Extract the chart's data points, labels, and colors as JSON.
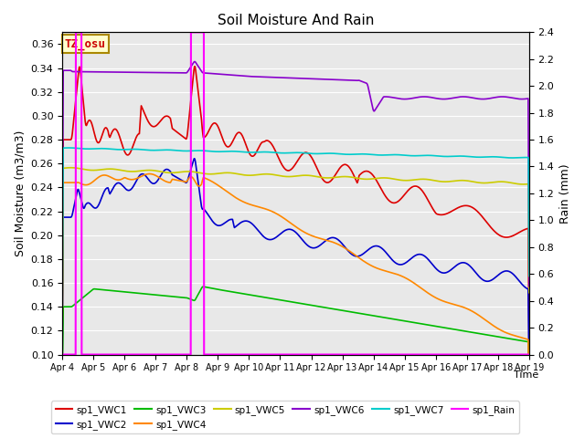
{
  "title": "Soil Moisture And Rain",
  "xlabel": "Time",
  "ylabel_left": "Soil Moisture (m3/m3)",
  "ylabel_right": "Rain (mm)",
  "annotation": "TZ_osu",
  "annotation_color": "#cc0000",
  "annotation_bg": "#ffffcc",
  "annotation_border": "#aa8800",
  "ylim_left": [
    0.1,
    0.37
  ],
  "ylim_right": [
    0.0,
    2.4
  ],
  "x_tick_labels": [
    "Apr 4",
    "Apr 5",
    "Apr 6",
    "Apr 7",
    "Apr 8",
    "Apr 9",
    "Apr 10",
    "Apr 11",
    "Apr 12",
    "Apr 13",
    "Apr 14",
    "Apr 15",
    "Apr 16",
    "Apr 17",
    "Apr 18",
    "Apr 19"
  ],
  "bg_color": "#e8e8e8",
  "series_colors": {
    "sp1_VWC1": "#dd0000",
    "sp1_VWC2": "#0000cc",
    "sp1_VWC3": "#00bb00",
    "sp1_VWC4": "#ff8800",
    "sp1_VWC5": "#cccc00",
    "sp1_VWC6": "#8800cc",
    "sp1_VWC7": "#00cccc",
    "sp1_Rain": "#ff00ff"
  },
  "legend_labels": [
    "sp1_VWC1",
    "sp1_VWC2",
    "sp1_VWC3",
    "sp1_VWC4",
    "sp1_VWC5",
    "sp1_VWC6",
    "sp1_VWC7",
    "sp1_Rain"
  ]
}
